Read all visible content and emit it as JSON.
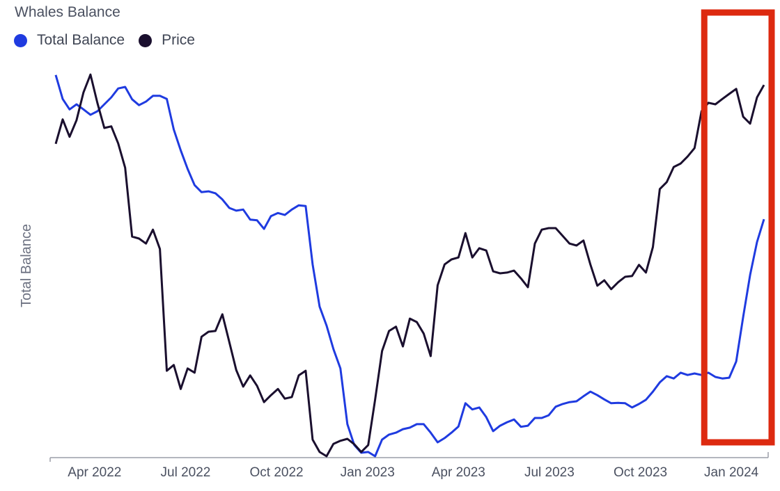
{
  "chart_data": {
    "type": "line",
    "title": "Whales Balance",
    "xlabel": "",
    "ylabel": "Total Balance",
    "y_units": "relative (0-100, normalized; no y tick labels shown)",
    "ylim": [
      0,
      100
    ],
    "x_units": "weeks since late Feb 2022",
    "xlim": [
      0,
      102
    ],
    "x_ticks": [
      {
        "label": "Apr 2022",
        "x": 5.6
      },
      {
        "label": "Jul 2022",
        "x": 18.7
      },
      {
        "label": "Oct 2022",
        "x": 31.8
      },
      {
        "label": "Jan 2023",
        "x": 44.9
      },
      {
        "label": "Apr 2023",
        "x": 58.0
      },
      {
        "label": "Jul 2023",
        "x": 71.1
      },
      {
        "label": "Oct 2023",
        "x": 84.2
      },
      {
        "label": "Jan 2024",
        "x": 97.3
      }
    ],
    "grid": false,
    "legend_placement": "top-left",
    "series": [
      {
        "name": "Total Balance",
        "color": "#1f3be0",
        "values": [
          98.6,
          92.4,
          89.7,
          91.0,
          89.7,
          88.3,
          89.2,
          91.0,
          92.8,
          95.1,
          95.5,
          92.3,
          90.8,
          91.7,
          93.2,
          93.2,
          92.4,
          84.5,
          79.1,
          74.3,
          70.1,
          68.3,
          68.5,
          68.0,
          66.4,
          64.2,
          63.5,
          63.8,
          61.2,
          61.0,
          58.8,
          62.1,
          62.9,
          62.4,
          63.8,
          64.9,
          64.7,
          49.6,
          38.7,
          33.8,
          27.7,
          22.7,
          8.3,
          2.9,
          0.9,
          1.1,
          0,
          4.3,
          5.6,
          6.1,
          7.0,
          7.4,
          8.3,
          8.3,
          6.1,
          3.6,
          4.7,
          6.1,
          7.7,
          13.7,
          12.1,
          12.6,
          10.1,
          6.5,
          7.9,
          8.8,
          9.5,
          7.6,
          7.9,
          9.9,
          9.9,
          10.6,
          12.8,
          13.5,
          14.0,
          14.2,
          15.5,
          16.7,
          15.8,
          14.7,
          13.7,
          13.8,
          13.7,
          12.6,
          13.5,
          14.6,
          16.7,
          19.1,
          20.7,
          20.1,
          21.6,
          21.0,
          21.4,
          21.0,
          21.6,
          20.5,
          20.1,
          20.3,
          24.5,
          36.0,
          46.9,
          55.4,
          61.3
        ]
      },
      {
        "name": "Price",
        "color": "#1a0f2e",
        "values": [
          80.8,
          87.1,
          82.6,
          86.9,
          94.1,
          98.7,
          91.4,
          84.9,
          85.3,
          80.9,
          74.6,
          56.8,
          56.3,
          55.0,
          58.6,
          53.6,
          22.1,
          23.6,
          17.4,
          22.7,
          21.6,
          30.9,
          32.2,
          32.4,
          36.7,
          29.5,
          22.3,
          18.0,
          20.9,
          18.2,
          14.0,
          15.8,
          17.4,
          14.9,
          15.3,
          20.9,
          22.1,
          4.3,
          1.1,
          0,
          3.2,
          4.0,
          4.5,
          3.1,
          1.1,
          2.9,
          14.6,
          27.2,
          32.4,
          33.5,
          28.4,
          35.6,
          34.7,
          31.7,
          25.9,
          44.2,
          49.6,
          50.9,
          51.4,
          57.7,
          51.4,
          53.8,
          53.2,
          47.8,
          47.3,
          47.5,
          48.0,
          46.0,
          43.7,
          55.0,
          58.6,
          59.0,
          59.0,
          57.0,
          55.0,
          54.5,
          55.8,
          49.6,
          44.1,
          45.5,
          43.2,
          45.0,
          46.4,
          46.6,
          49.5,
          47.5,
          54.1,
          69.1,
          70.9,
          74.8,
          75.7,
          77.5,
          79.7,
          89.2,
          91.4,
          91.0,
          92.4,
          93.7,
          95.0,
          87.8,
          86.0,
          92.8,
          96.0
        ]
      }
    ],
    "annotations": [
      {
        "type": "highlight-box",
        "color": "#dd2a10",
        "x_range": [
          93,
          104
        ]
      }
    ]
  }
}
